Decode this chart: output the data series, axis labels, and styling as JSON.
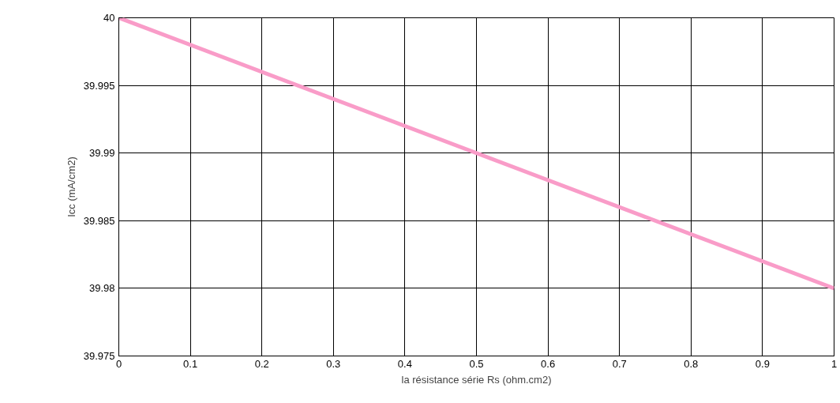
{
  "chart_data": {
    "type": "line",
    "xlabel": "la résistance série Rs (ohm.cm2)",
    "ylabel": "Icc (mA/cm2)",
    "x": [
      0,
      1
    ],
    "series": [
      {
        "color": "#f99cc8",
        "values": [
          40,
          39.98
        ]
      }
    ],
    "xlim": [
      0,
      1
    ],
    "ylim": [
      39.975,
      40
    ],
    "xticks": [
      0,
      0.1,
      0.2,
      0.3,
      0.4,
      0.5,
      0.6,
      0.7,
      0.8,
      0.9,
      1
    ],
    "yticks": [
      39.975,
      39.98,
      39.985,
      39.99,
      39.995,
      40
    ],
    "grid": true,
    "line_style": "solid",
    "marker": "none"
  }
}
